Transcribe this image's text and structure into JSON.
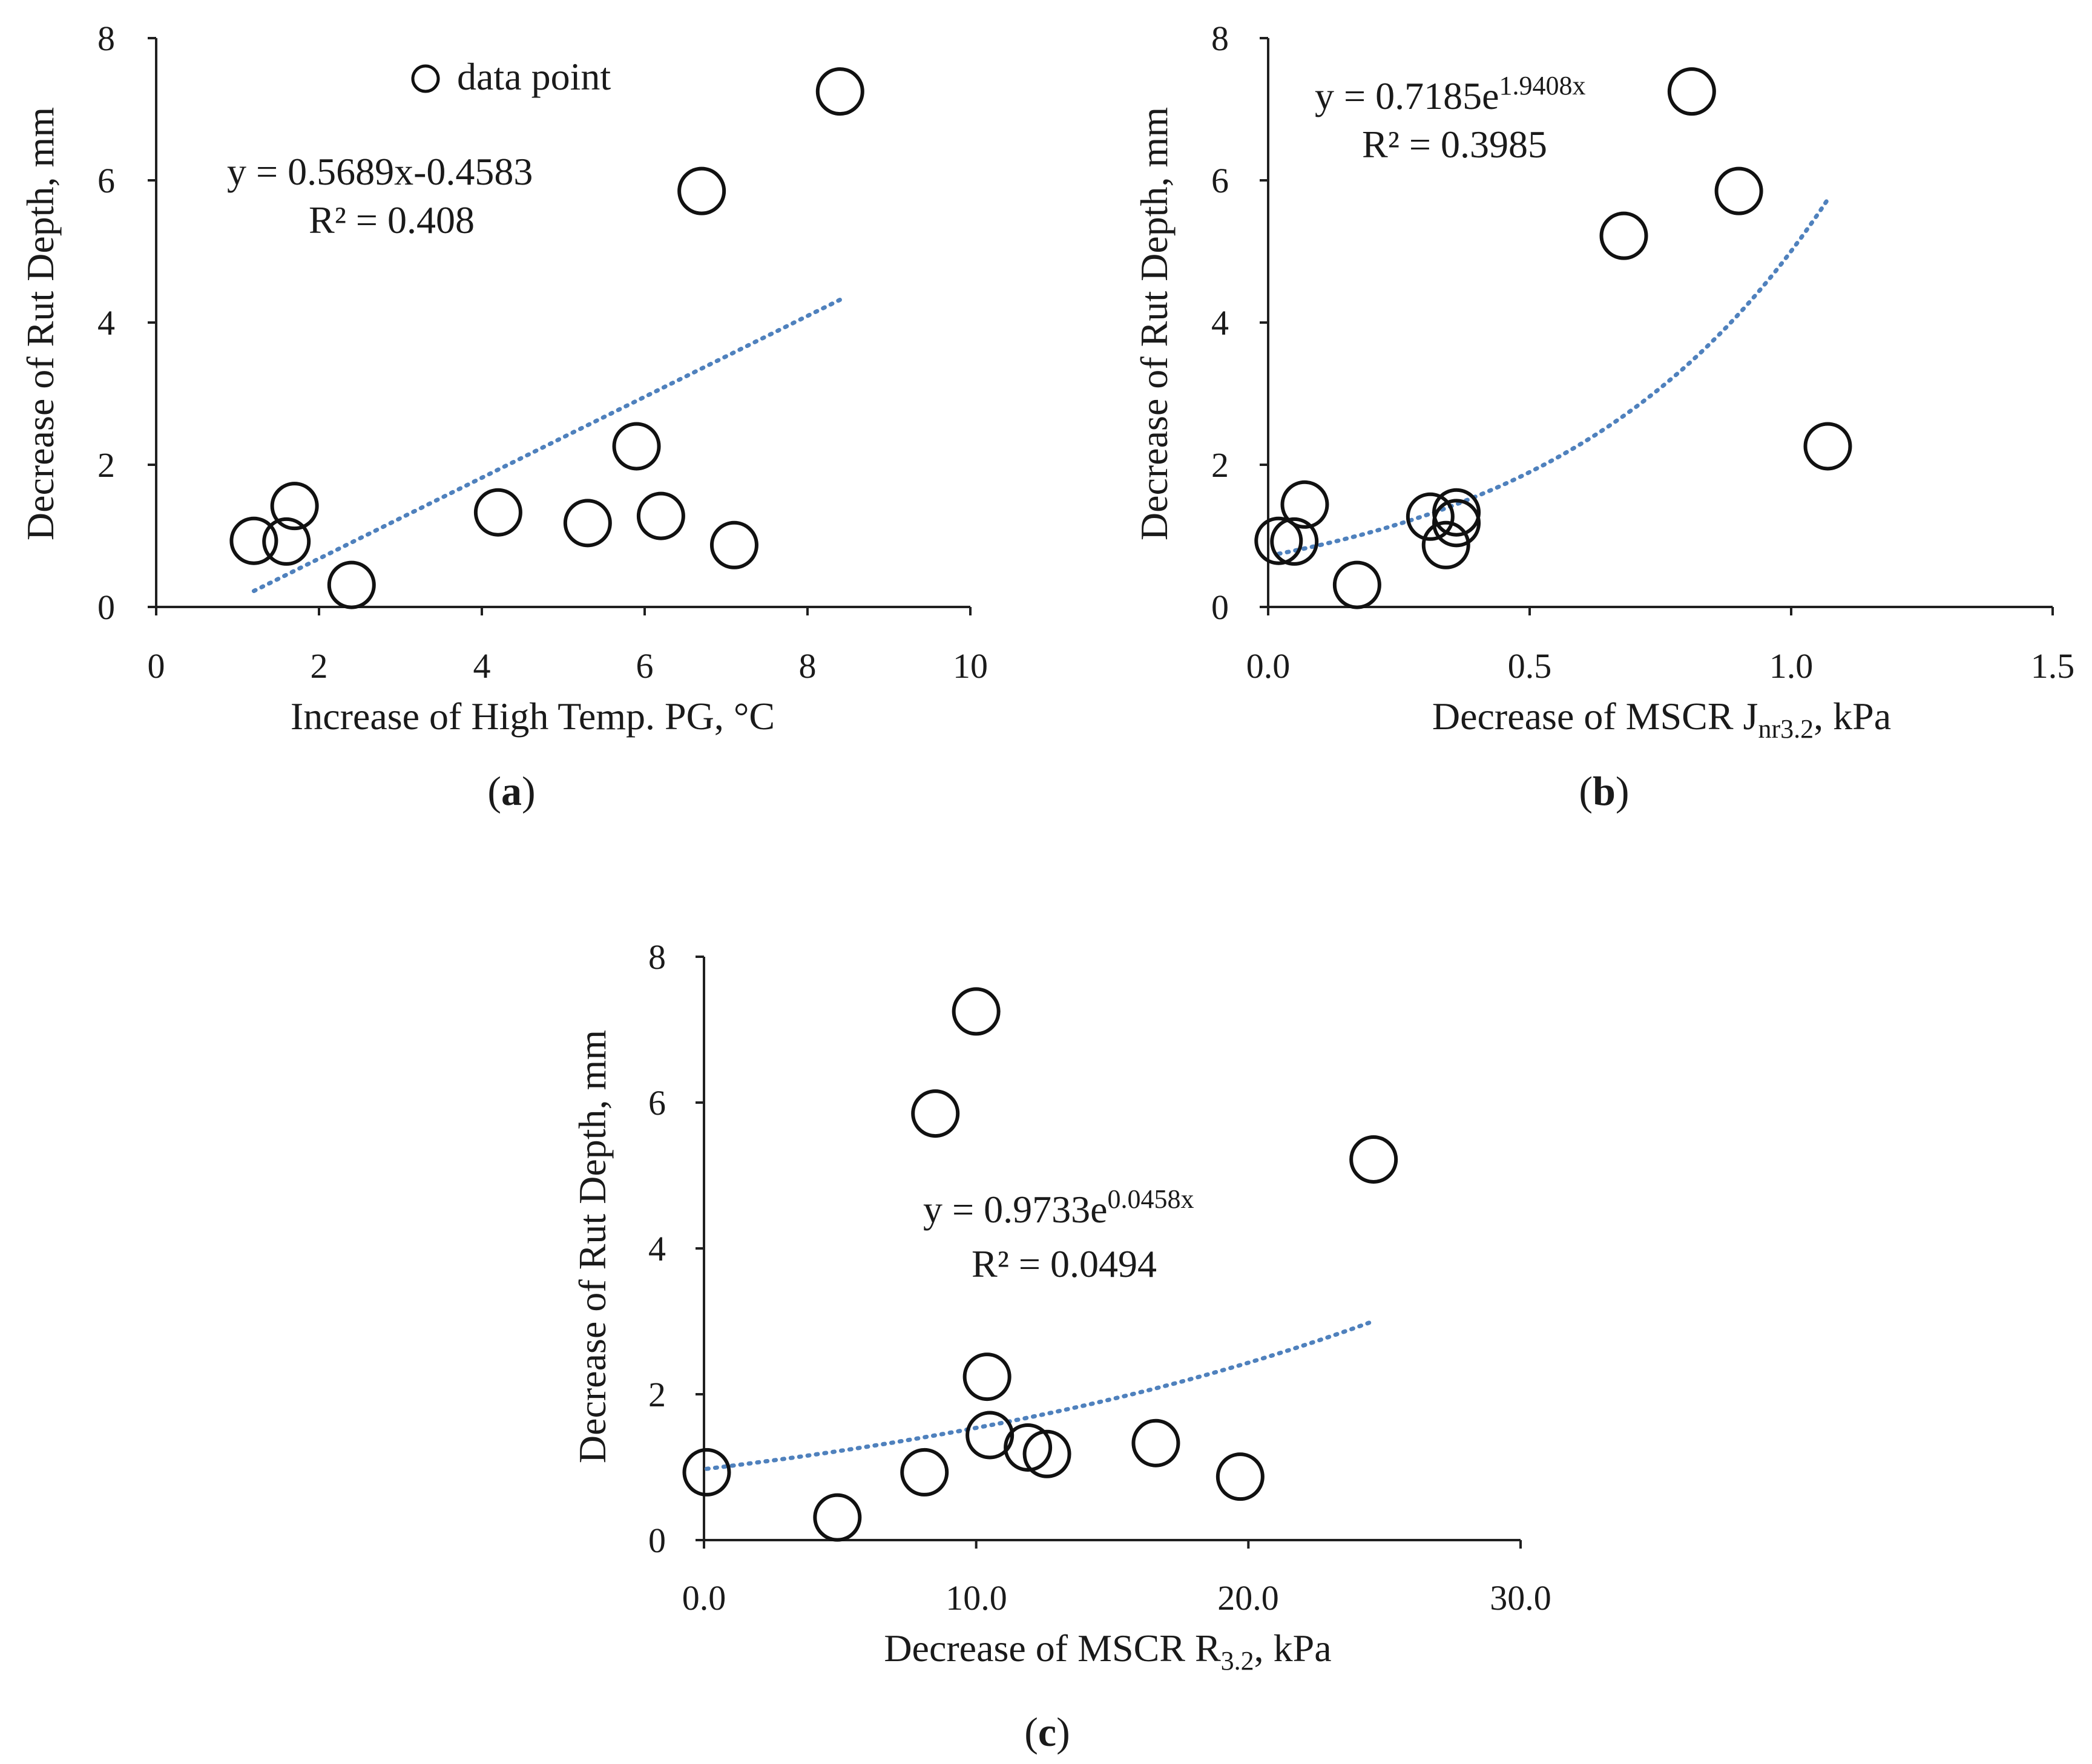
{
  "legend": {
    "label": "data point",
    "marker": "open-circle"
  },
  "colors": {
    "trendline": "#4f81bd",
    "axis": "#202020",
    "marker": "#111111"
  },
  "chart_data": [
    {
      "id": "a",
      "type": "scatter",
      "caption": {
        "open": "(",
        "letter": "a",
        "close": ")"
      },
      "xlabel": "Increase of High Temp. PG, °C",
      "ylabel": "Decrease of Rut Depth, mm",
      "xlim": [
        0,
        10
      ],
      "ylim": [
        0,
        8
      ],
      "xticks": [
        0,
        2,
        4,
        6,
        8,
        10
      ],
      "xtick_labels": [
        "0",
        "2",
        "4",
        "6",
        "8",
        "10"
      ],
      "yticks": [
        0,
        2,
        4,
        6,
        8
      ],
      "ytick_labels": [
        "0",
        "2",
        "4",
        "6",
        "8"
      ],
      "points": [
        {
          "x": 1.2,
          "y": 0.93
        },
        {
          "x": 1.6,
          "y": 0.92
        },
        {
          "x": 1.7,
          "y": 1.42
        },
        {
          "x": 2.4,
          "y": 0.31
        },
        {
          "x": 4.2,
          "y": 1.33
        },
        {
          "x": 5.3,
          "y": 1.18
        },
        {
          "x": 5.9,
          "y": 2.26
        },
        {
          "x": 6.2,
          "y": 1.28
        },
        {
          "x": 6.7,
          "y": 5.85
        },
        {
          "x": 7.1,
          "y": 0.87
        },
        {
          "x": 8.4,
          "y": 7.25
        }
      ],
      "trendline": {
        "kind": "linear",
        "a": 0.5689,
        "b": -0.4583,
        "x_range": [
          1.2,
          8.4
        ]
      },
      "equation": "y = 0.5689x-0.4583",
      "r2": "R² = 0.408"
    },
    {
      "id": "b",
      "type": "scatter",
      "caption": {
        "open": "(",
        "letter": "b",
        "close": ")"
      },
      "xlabel": {
        "main": "Decrease of MSCR J",
        "sub": "nr3.2",
        "tail": ", kPa"
      },
      "ylabel": "Decrease of Rut Depth, mm",
      "xlim": [
        0,
        1.5
      ],
      "ylim": [
        0,
        8
      ],
      "xticks": [
        0,
        0.5,
        1.0,
        1.5
      ],
      "xtick_labels": [
        "0.0",
        "0.5",
        "1.0",
        "1.5"
      ],
      "yticks": [
        0,
        2,
        4,
        6,
        8
      ],
      "ytick_labels": [
        "0",
        "2",
        "4",
        "6",
        "8"
      ],
      "points": [
        {
          "x": 0.02,
          "y": 0.93
        },
        {
          "x": 0.05,
          "y": 0.92
        },
        {
          "x": 0.07,
          "y": 1.44
        },
        {
          "x": 0.17,
          "y": 0.31
        },
        {
          "x": 0.31,
          "y": 1.27
        },
        {
          "x": 0.34,
          "y": 0.87
        },
        {
          "x": 0.36,
          "y": 1.33
        },
        {
          "x": 0.36,
          "y": 1.18
        },
        {
          "x": 0.68,
          "y": 5.22
        },
        {
          "x": 0.81,
          "y": 7.25
        },
        {
          "x": 0.9,
          "y": 5.85
        },
        {
          "x": 1.07,
          "y": 2.26
        }
      ],
      "trendline": {
        "kind": "exponential",
        "a": 0.7185,
        "b": 1.9408,
        "x_range": [
          0.02,
          1.07
        ]
      },
      "equation": {
        "main": "y = 0.7185e",
        "exp": "1.9408x"
      },
      "r2": "R² = 0.3985"
    },
    {
      "id": "c",
      "type": "scatter",
      "caption": {
        "open": "(",
        "letter": "c",
        "close": ")"
      },
      "xlabel": {
        "main": "Decrease of MSCR R",
        "sub": "3.2",
        "tail": ", kPa"
      },
      "ylabel": "Decrease of Rut Depth, mm",
      "xlim": [
        0,
        30
      ],
      "ylim": [
        0,
        8
      ],
      "xticks": [
        0,
        10,
        20,
        30
      ],
      "xtick_labels": [
        "0.0",
        "10.0",
        "20.0",
        "30.0"
      ],
      "yticks": [
        0,
        2,
        4,
        6,
        8
      ],
      "ytick_labels": [
        "0",
        "2",
        "4",
        "6",
        "8"
      ],
      "points": [
        {
          "x": 0.1,
          "y": 0.93
        },
        {
          "x": 4.9,
          "y": 0.31
        },
        {
          "x": 8.1,
          "y": 0.93
        },
        {
          "x": 8.5,
          "y": 5.85
        },
        {
          "x": 10.0,
          "y": 7.25
        },
        {
          "x": 10.4,
          "y": 2.24
        },
        {
          "x": 10.5,
          "y": 1.44
        },
        {
          "x": 11.9,
          "y": 1.27
        },
        {
          "x": 12.6,
          "y": 1.18
        },
        {
          "x": 16.6,
          "y": 1.33
        },
        {
          "x": 19.7,
          "y": 0.87
        },
        {
          "x": 24.6,
          "y": 5.22
        }
      ],
      "trendline": {
        "kind": "exponential",
        "a": 0.9733,
        "b": 0.0458,
        "x_range": [
          0.1,
          24.6
        ]
      },
      "equation": {
        "main": "y = 0.9733e",
        "exp": "0.0458x"
      },
      "r2": "R² = 0.0494"
    }
  ]
}
